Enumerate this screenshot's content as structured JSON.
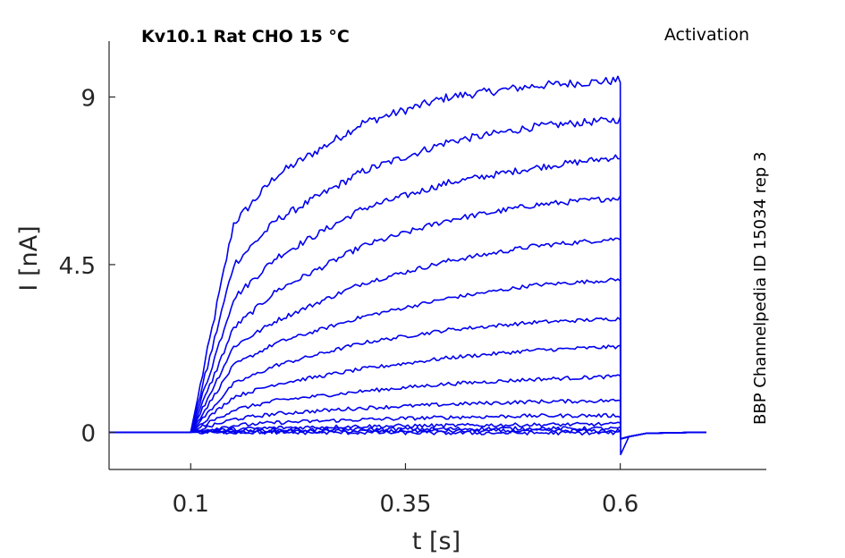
{
  "chart_data": {
    "type": "line",
    "title_left": "Kv10.1  Rat  CHO  15 °C",
    "title_right": "Activation",
    "side_note": "BBP Channelpedia ID 15034 rep 3",
    "xlabel": "t [s]",
    "ylabel": "I [nA]",
    "xlim": [
      0.005,
      0.77
    ],
    "ylim": [
      -1.0,
      10.5
    ],
    "xticks": [
      {
        "value": 0.1,
        "label": "0.1"
      },
      {
        "value": 0.35,
        "label": "0.35"
      },
      {
        "value": 0.6,
        "label": "0.6"
      }
    ],
    "yticks": [
      {
        "value": 0,
        "label": "0"
      },
      {
        "value": 4.5,
        "label": "4.5"
      },
      {
        "value": 9,
        "label": "9"
      }
    ],
    "grid": false,
    "line_color": "#0000ee",
    "pulse_start": 0.1,
    "pulse_end": 0.6,
    "t_start": 0.005,
    "t_end": 0.7,
    "series": [
      {
        "t": [
          0.1,
          0.15,
          0.2,
          0.3,
          0.4,
          0.5,
          0.6
        ],
        "i": [
          0.0,
          5.6,
          6.9,
          8.3,
          9.0,
          9.3,
          9.45
        ]
      },
      {
        "t": [
          0.1,
          0.15,
          0.2,
          0.3,
          0.4,
          0.5,
          0.6
        ],
        "i": [
          0.0,
          4.5,
          5.7,
          7.0,
          7.8,
          8.2,
          8.4
        ]
      },
      {
        "t": [
          0.1,
          0.15,
          0.2,
          0.3,
          0.4,
          0.5,
          0.6
        ],
        "i": [
          0.0,
          3.6,
          4.7,
          6.0,
          6.7,
          7.1,
          7.4
        ]
      },
      {
        "t": [
          0.1,
          0.15,
          0.2,
          0.3,
          0.4,
          0.5,
          0.6
        ],
        "i": [
          0.0,
          2.8,
          3.8,
          5.0,
          5.7,
          6.1,
          6.3
        ]
      },
      {
        "t": [
          0.1,
          0.15,
          0.2,
          0.3,
          0.4,
          0.5,
          0.6
        ],
        "i": [
          0.0,
          2.3,
          3.0,
          4.0,
          4.6,
          5.0,
          5.2
        ]
      },
      {
        "t": [
          0.1,
          0.15,
          0.2,
          0.3,
          0.4,
          0.5,
          0.6
        ],
        "i": [
          0.0,
          1.8,
          2.4,
          3.1,
          3.6,
          3.95,
          4.1
        ]
      },
      {
        "t": [
          0.1,
          0.15,
          0.2,
          0.3,
          0.4,
          0.5,
          0.6
        ],
        "i": [
          0.0,
          1.3,
          1.8,
          2.4,
          2.75,
          2.95,
          3.05
        ]
      },
      {
        "t": [
          0.1,
          0.15,
          0.2,
          0.3,
          0.4,
          0.5,
          0.6
        ],
        "i": [
          0.0,
          0.95,
          1.3,
          1.7,
          2.0,
          2.2,
          2.3
        ]
      },
      {
        "t": [
          0.1,
          0.15,
          0.2,
          0.3,
          0.4,
          0.5,
          0.6
        ],
        "i": [
          0.0,
          0.6,
          0.85,
          1.1,
          1.3,
          1.42,
          1.5
        ]
      },
      {
        "t": [
          0.1,
          0.15,
          0.2,
          0.3,
          0.4,
          0.5,
          0.6
        ],
        "i": [
          0.0,
          0.35,
          0.5,
          0.65,
          0.75,
          0.82,
          0.85
        ]
      },
      {
        "t": [
          0.1,
          0.15,
          0.2,
          0.3,
          0.4,
          0.5,
          0.6
        ],
        "i": [
          0.0,
          0.18,
          0.26,
          0.34,
          0.4,
          0.44,
          0.45
        ]
      },
      {
        "t": [
          0.1,
          0.15,
          0.2,
          0.3,
          0.4,
          0.5,
          0.6
        ],
        "i": [
          0.0,
          0.08,
          0.12,
          0.16,
          0.18,
          0.2,
          0.22
        ]
      },
      {
        "t": [
          0.1,
          0.15,
          0.2,
          0.3,
          0.4,
          0.5,
          0.6
        ],
        "i": [
          0.0,
          0.04,
          0.06,
          0.08,
          0.09,
          0.1,
          0.1
        ]
      },
      {
        "t": [
          0.1,
          0.15,
          0.2,
          0.3,
          0.4,
          0.5,
          0.6
        ],
        "i": [
          0.0,
          0.01,
          0.02,
          0.03,
          0.03,
          0.04,
          0.04
        ]
      },
      {
        "t": [
          0.1,
          0.15,
          0.2,
          0.3,
          0.4,
          0.5,
          0.6
        ],
        "i": [
          0.0,
          0.0,
          -0.01,
          -0.01,
          -0.02,
          -0.02,
          -0.02
        ]
      }
    ],
    "tail_min": -0.6
  }
}
